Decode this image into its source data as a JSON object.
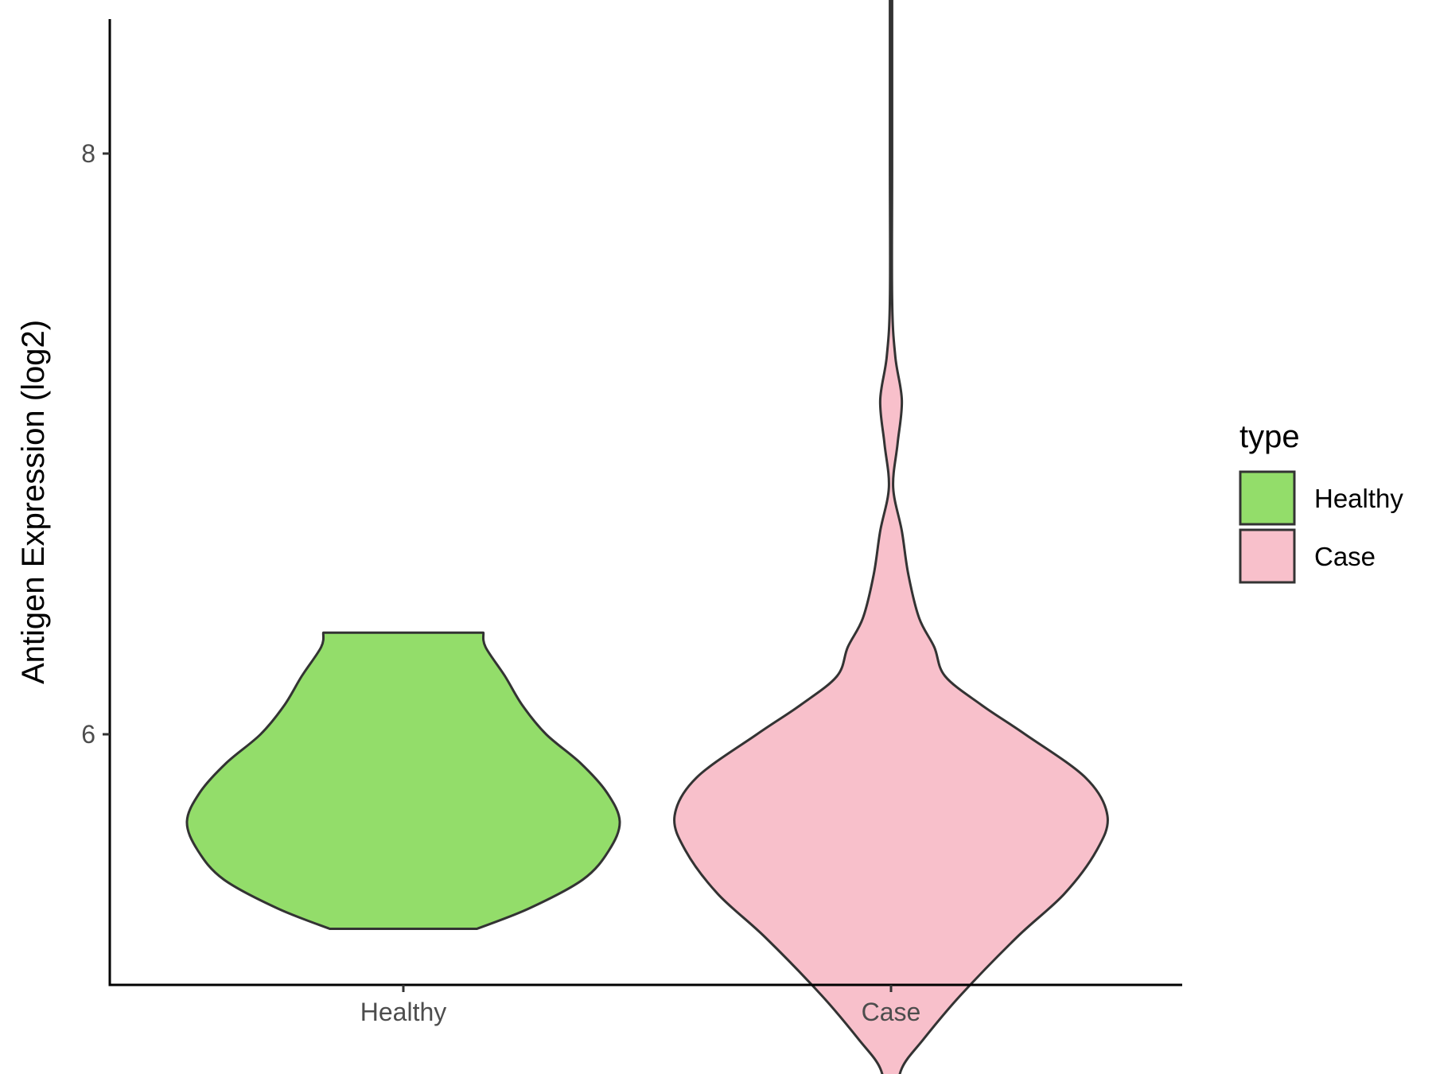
{
  "chart_data": {
    "type": "violin",
    "title": "",
    "xlabel": "",
    "ylabel": "Antigen Expression (log2)",
    "ylim": [
      4.55,
      10.9
    ],
    "yticks": [
      6,
      8,
      10
    ],
    "categories": [
      "Healthy",
      "Case"
    ],
    "grid": false,
    "legend": {
      "title": "type",
      "position": "right",
      "entries": [
        {
          "label": "Healthy",
          "color": "#93dd6a"
        },
        {
          "label": "Case",
          "color": "#f8c0cb"
        }
      ]
    },
    "series": [
      {
        "name": "Healthy",
        "color": "#93dd6a",
        "min": 5.33,
        "max": 6.35,
        "density": [
          [
            5.33,
            0.34
          ],
          [
            5.4,
            0.58
          ],
          [
            5.5,
            0.83
          ],
          [
            5.6,
            0.95
          ],
          [
            5.7,
            1.0
          ],
          [
            5.8,
            0.94
          ],
          [
            5.9,
            0.82
          ],
          [
            6.0,
            0.66
          ],
          [
            6.1,
            0.55
          ],
          [
            6.2,
            0.47
          ],
          [
            6.3,
            0.38
          ],
          [
            6.35,
            0.37
          ]
        ]
      },
      {
        "name": "Case",
        "color": "#f8c0cb",
        "min": 4.65,
        "max": 10.65,
        "density": [
          [
            4.65,
            0.04
          ],
          [
            4.75,
            0.03
          ],
          [
            4.85,
            0.05
          ],
          [
            4.95,
            0.15
          ],
          [
            5.1,
            0.32
          ],
          [
            5.3,
            0.58
          ],
          [
            5.45,
            0.8
          ],
          [
            5.6,
            0.95
          ],
          [
            5.72,
            1.0
          ],
          [
            5.85,
            0.9
          ],
          [
            6.0,
            0.62
          ],
          [
            6.1,
            0.42
          ],
          [
            6.2,
            0.25
          ],
          [
            6.3,
            0.2
          ],
          [
            6.4,
            0.13
          ],
          [
            6.55,
            0.08
          ],
          [
            6.7,
            0.05
          ],
          [
            6.85,
            0.01
          ],
          [
            7.0,
            0.03
          ],
          [
            7.15,
            0.05
          ],
          [
            7.3,
            0.02
          ],
          [
            7.5,
            0.005
          ],
          [
            8.0,
            0.005
          ],
          [
            9.0,
            0.005
          ],
          [
            10.0,
            0.005
          ],
          [
            10.4,
            0.01
          ],
          [
            10.55,
            0.02
          ],
          [
            10.65,
            0.02
          ]
        ]
      }
    ]
  }
}
